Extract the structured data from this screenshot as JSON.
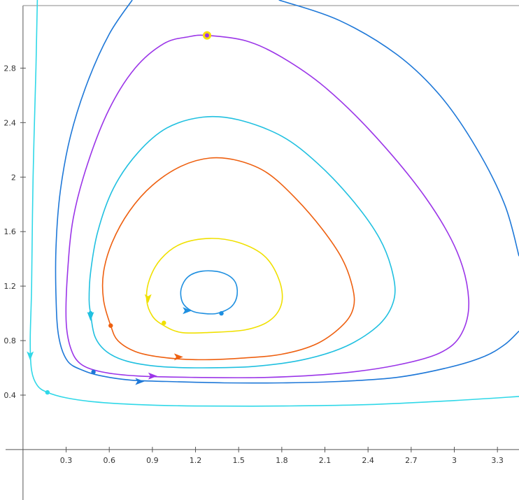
{
  "chart_data": {
    "type": "line",
    "title": "",
    "xlabel": "",
    "ylabel": "",
    "xlim": [
      -0.16,
      3.45
    ],
    "ylim": [
      -0.37,
      3.3
    ],
    "grid": false,
    "legend": "none",
    "x_ticks": [
      {
        "value": 0.3,
        "label": "0.3"
      },
      {
        "value": 0.6,
        "label": "0.6"
      },
      {
        "value": 0.9,
        "label": "0.9"
      },
      {
        "value": 1.2,
        "label": "1.2"
      },
      {
        "value": 1.5,
        "label": "1.5"
      },
      {
        "value": 1.8,
        "label": "1.8"
      },
      {
        "value": 2.1,
        "label": "2.1"
      },
      {
        "value": 2.4,
        "label": "2.4"
      },
      {
        "value": 2.7,
        "label": "2.7"
      },
      {
        "value": 3.0,
        "label": "3"
      },
      {
        "value": 3.3,
        "label": "3.3"
      }
    ],
    "y_ticks": [
      {
        "value": 0.4,
        "label": "0.4"
      },
      {
        "value": 0.8,
        "label": "0.8"
      },
      {
        "value": 1.2,
        "label": "1.2"
      },
      {
        "value": 1.6,
        "label": "1.6"
      },
      {
        "value": 2.0,
        "label": "2"
      },
      {
        "value": 2.4,
        "label": "2.4"
      },
      {
        "value": 2.8,
        "label": "2.8"
      }
    ],
    "series": [
      {
        "color": "#1e8fe0",
        "closed": true,
        "start": {
          "x": 1.38,
          "y": 1.0
        },
        "points": [
          [
            1.25,
            1.0
          ],
          [
            1.35,
            1.0
          ],
          [
            1.45,
            1.05
          ],
          [
            1.49,
            1.14
          ],
          [
            1.47,
            1.24
          ],
          [
            1.38,
            1.3
          ],
          [
            1.25,
            1.31
          ],
          [
            1.15,
            1.27
          ],
          [
            1.1,
            1.18
          ],
          [
            1.11,
            1.08
          ],
          [
            1.17,
            1.02
          ]
        ],
        "arrows": [
          {
            "x": 1.14,
            "y": 1.02,
            "dir": "right"
          }
        ]
      },
      {
        "color": "#f0e000",
        "closed": true,
        "start": {
          "x": 0.98,
          "y": 0.93
        },
        "points": [
          [
            1.1,
            0.86
          ],
          [
            1.3,
            0.86
          ],
          [
            1.55,
            0.88
          ],
          [
            1.72,
            0.95
          ],
          [
            1.8,
            1.08
          ],
          [
            1.78,
            1.25
          ],
          [
            1.68,
            1.42
          ],
          [
            1.5,
            1.52
          ],
          [
            1.3,
            1.55
          ],
          [
            1.1,
            1.51
          ],
          [
            0.96,
            1.4
          ],
          [
            0.88,
            1.25
          ],
          [
            0.86,
            1.1
          ],
          [
            0.9,
            0.98
          ],
          [
            0.98,
            0.91
          ]
        ],
        "arrows": [
          {
            "x": 0.87,
            "y": 1.11,
            "dir": "down"
          }
        ]
      },
      {
        "color": "#ee6010",
        "closed": true,
        "start": {
          "x": 0.61,
          "y": 0.91
        },
        "points": [
          [
            0.61,
            0.91
          ],
          [
            0.66,
            0.8
          ],
          [
            0.78,
            0.72
          ],
          [
            0.95,
            0.68
          ],
          [
            1.2,
            0.66
          ],
          [
            1.5,
            0.67
          ],
          [
            1.8,
            0.7
          ],
          [
            2.05,
            0.78
          ],
          [
            2.23,
            0.92
          ],
          [
            2.3,
            1.05
          ],
          [
            2.29,
            1.2
          ],
          [
            2.22,
            1.4
          ],
          [
            2.08,
            1.62
          ],
          [
            1.9,
            1.84
          ],
          [
            1.7,
            2.03
          ],
          [
            1.5,
            2.12
          ],
          [
            1.3,
            2.14
          ],
          [
            1.1,
            2.08
          ],
          [
            0.9,
            1.94
          ],
          [
            0.74,
            1.75
          ],
          [
            0.62,
            1.52
          ],
          [
            0.56,
            1.3
          ],
          [
            0.56,
            1.1
          ]
        ],
        "arrows": [
          {
            "x": 1.08,
            "y": 0.68,
            "dir": "right"
          }
        ]
      },
      {
        "color": "#20c0e0",
        "closed": true,
        "start": {
          "x": 0.47,
          "y": 1.0
        },
        "points": [
          [
            0.47,
            1.0
          ],
          [
            0.5,
            0.83
          ],
          [
            0.58,
            0.72
          ],
          [
            0.72,
            0.65
          ],
          [
            0.95,
            0.61
          ],
          [
            1.25,
            0.6
          ],
          [
            1.6,
            0.61
          ],
          [
            1.95,
            0.66
          ],
          [
            2.25,
            0.76
          ],
          [
            2.48,
            0.92
          ],
          [
            2.58,
            1.1
          ],
          [
            2.57,
            1.3
          ],
          [
            2.48,
            1.55
          ],
          [
            2.3,
            1.82
          ],
          [
            2.05,
            2.1
          ],
          [
            1.8,
            2.3
          ],
          [
            1.5,
            2.42
          ],
          [
            1.25,
            2.44
          ],
          [
            1.0,
            2.36
          ],
          [
            0.8,
            2.18
          ],
          [
            0.63,
            1.92
          ],
          [
            0.52,
            1.6
          ],
          [
            0.47,
            1.3
          ],
          [
            0.46,
            1.1
          ]
        ],
        "arrows": [
          {
            "x": 0.47,
            "y": 0.98,
            "dir": "down"
          }
        ]
      },
      {
        "color": "#9b35e8",
        "closed": true,
        "start": {
          "x": 1.28,
          "y": 3.04
        },
        "points": [
          [
            1.28,
            3.04
          ],
          [
            1.55,
            3.0
          ],
          [
            1.8,
            2.88
          ],
          [
            2.1,
            2.66
          ],
          [
            2.45,
            2.3
          ],
          [
            2.8,
            1.85
          ],
          [
            3.02,
            1.45
          ],
          [
            3.1,
            1.1
          ],
          [
            3.05,
            0.85
          ],
          [
            2.9,
            0.71
          ],
          [
            2.6,
            0.62
          ],
          [
            2.2,
            0.56
          ],
          [
            1.7,
            0.53
          ],
          [
            1.2,
            0.53
          ],
          [
            0.8,
            0.54
          ],
          [
            0.55,
            0.57
          ],
          [
            0.4,
            0.63
          ],
          [
            0.33,
            0.75
          ],
          [
            0.3,
            0.95
          ],
          [
            0.31,
            1.3
          ],
          [
            0.35,
            1.7
          ],
          [
            0.45,
            2.1
          ],
          [
            0.6,
            2.5
          ],
          [
            0.78,
            2.8
          ],
          [
            0.98,
            2.98
          ],
          [
            1.15,
            3.03
          ]
        ],
        "arrows": [
          {
            "x": 0.9,
            "y": 0.54,
            "dir": "right"
          }
        ]
      },
      {
        "color": "#1e78d8",
        "closed": false,
        "start": {
          "x": 0.49,
          "y": 0.57
        },
        "points": [
          [
            0.76,
            3.3
          ],
          [
            0.6,
            3.05
          ],
          [
            0.45,
            2.7
          ],
          [
            0.33,
            2.3
          ],
          [
            0.26,
            1.9
          ],
          [
            0.23,
            1.5
          ],
          [
            0.23,
            1.1
          ],
          [
            0.25,
            0.82
          ],
          [
            0.31,
            0.65
          ],
          [
            0.42,
            0.58
          ],
          [
            0.55,
            0.54
          ],
          [
            0.75,
            0.51
          ],
          [
            1.0,
            0.5
          ],
          [
            1.4,
            0.49
          ],
          [
            1.8,
            0.49
          ],
          [
            2.2,
            0.5
          ],
          [
            2.6,
            0.53
          ],
          [
            2.95,
            0.6
          ],
          [
            3.2,
            0.68
          ],
          [
            3.35,
            0.77
          ],
          [
            3.45,
            0.87
          ]
        ],
        "arrows": [
          {
            "x": 0.81,
            "y": 0.5,
            "dir": "right"
          }
        ]
      },
      {
        "color": "#1e78d8",
        "closed": false,
        "points": [
          [
            1.78,
            3.3
          ],
          [
            2.2,
            3.15
          ],
          [
            2.6,
            2.9
          ],
          [
            2.9,
            2.6
          ],
          [
            3.15,
            2.22
          ],
          [
            3.35,
            1.8
          ],
          [
            3.45,
            1.42
          ]
        ],
        "arrows": []
      },
      {
        "color": "#30d8e8",
        "closed": false,
        "start": {
          "x": 0.17,
          "y": 0.42
        },
        "points": [
          [
            0.1,
            3.3
          ],
          [
            0.09,
            2.8
          ],
          [
            0.07,
            2.0
          ],
          [
            0.06,
            1.2
          ],
          [
            0.05,
            0.8
          ],
          [
            0.06,
            0.58
          ],
          [
            0.1,
            0.47
          ],
          [
            0.17,
            0.42
          ],
          [
            0.3,
            0.38
          ],
          [
            0.5,
            0.35
          ],
          [
            0.8,
            0.33
          ],
          [
            1.2,
            0.32
          ],
          [
            1.8,
            0.32
          ],
          [
            2.4,
            0.33
          ],
          [
            3.0,
            0.36
          ],
          [
            3.45,
            0.39
          ]
        ],
        "arrows": [
          {
            "x": 0.05,
            "y": 0.69,
            "dir": "down"
          }
        ]
      }
    ]
  }
}
